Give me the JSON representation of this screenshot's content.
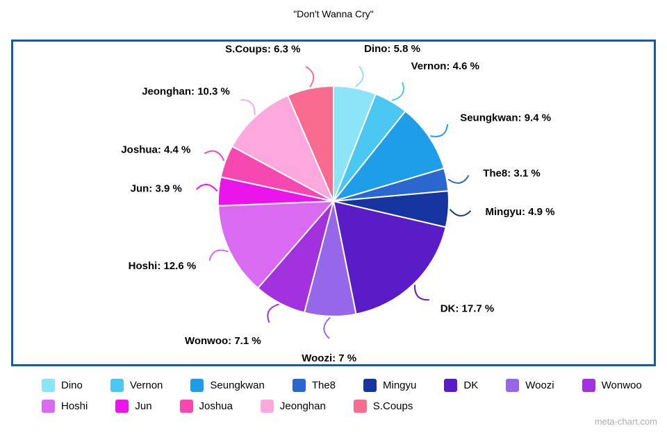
{
  "page": {
    "watermark": "meta-chart.com"
  },
  "colors": {
    "frame": "#0F5CA8",
    "watermark": "#AFAFAF",
    "slice_outline": "#FFFFFF",
    "label_text": "#000000"
  },
  "chart_data": {
    "type": "pie",
    "title": "\"Don't Wanna Cry\"",
    "value_suffix": " %",
    "legend_position": "bottom",
    "start_angle_deg": 0,
    "direction": "clockwise",
    "slices": [
      {
        "label": "Dino",
        "value": 5.8,
        "color": "#8BE4F8"
      },
      {
        "label": "Vernon",
        "value": 4.6,
        "color": "#4AC8F2"
      },
      {
        "label": "Seungkwan",
        "value": 9.4,
        "color": "#1E9DE9"
      },
      {
        "label": "The8",
        "value": 3.1,
        "color": "#2A67CE"
      },
      {
        "label": "Mingyu",
        "value": 4.9,
        "color": "#16349F"
      },
      {
        "label": "DK",
        "value": 17.7,
        "color": "#5A1CC6"
      },
      {
        "label": "Woozi",
        "value": 7,
        "color": "#9767EA"
      },
      {
        "label": "Wonwoo",
        "value": 7.1,
        "color": "#A232DD"
      },
      {
        "label": "Hoshi",
        "value": 12.6,
        "color": "#DA6AF2"
      },
      {
        "label": "Jun",
        "value": 3.9,
        "color": "#EB14EB"
      },
      {
        "label": "Joshua",
        "value": 4.4,
        "color": "#F748B2"
      },
      {
        "label": "Jeonghan",
        "value": 10.3,
        "color": "#FDA9DD"
      },
      {
        "label": "S.Coups",
        "value": 6.3,
        "color": "#FA6C8F"
      }
    ]
  }
}
